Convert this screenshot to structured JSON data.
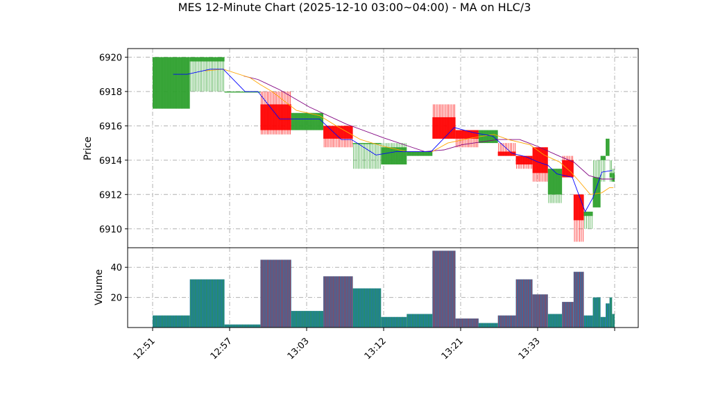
{
  "chart_data": {
    "type": "candlestick",
    "title": "MES 12-Minute Chart (2025-12-10 03:00~04:00) - MA on HLC/3",
    "ylabel_price": "Price",
    "ylabel_volume": "Volume",
    "price_ylim": [
      6908.9,
      6920.5
    ],
    "price_ticks": [
      6910,
      6912,
      6914,
      6916,
      6918,
      6920
    ],
    "volume_ylim": [
      0,
      53
    ],
    "volume_ticks": [
      20,
      40
    ],
    "x_tick_labels": [
      "12:51",
      "12:57",
      "13:03",
      "13:12",
      "13:21",
      "13:33"
    ],
    "grid": true,
    "colors": {
      "up": "#2ca02c",
      "down": "#ff0000",
      "ma_short": "#0000ff",
      "ma_mid": "#ffa500",
      "ma_long": "#800080",
      "volume_up": "#1f77b4",
      "volume_down": "#1f77b4"
    },
    "candles": [
      {
        "x0": 0.0,
        "x1": 2.9,
        "open": 6917.0,
        "high": 6920.0,
        "low": 6917.0,
        "close": 6920.0,
        "volume": 8
      },
      {
        "x0": 2.9,
        "x1": 5.6,
        "open": 6919.75,
        "high": 6920.0,
        "low": 6918.0,
        "close": 6920.0,
        "volume": 32
      },
      {
        "x0": 5.6,
        "x1": 8.4,
        "open": 6918.0,
        "high": 6918.0,
        "low": 6918.0,
        "close": 6918.0,
        "volume": 2
      },
      {
        "x0": 8.4,
        "x1": 10.8,
        "open": 6917.25,
        "high": 6918.0,
        "low": 6915.5,
        "close": 6915.75,
        "volume": 45
      },
      {
        "x0": 10.8,
        "x1": 13.3,
        "open": 6915.75,
        "high": 6916.75,
        "low": 6915.75,
        "close": 6916.75,
        "volume": 11
      },
      {
        "x0": 13.3,
        "x1": 15.6,
        "open": 6916.0,
        "high": 6916.0,
        "low": 6914.75,
        "close": 6915.25,
        "volume": 34
      },
      {
        "x0": 15.6,
        "x1": 17.8,
        "open": 6915.0,
        "high": 6915.0,
        "low": 6913.5,
        "close": 6915.0,
        "volume": 26
      },
      {
        "x0": 17.8,
        "x1": 19.8,
        "open": 6913.75,
        "high": 6915.0,
        "low": 6913.75,
        "close": 6914.75,
        "volume": 7
      },
      {
        "x0": 19.8,
        "x1": 21.8,
        "open": 6914.25,
        "high": 6914.5,
        "low": 6914.25,
        "close": 6914.5,
        "volume": 9
      },
      {
        "x0": 21.8,
        "x1": 23.6,
        "open": 6916.5,
        "high": 6917.25,
        "low": 6915.25,
        "close": 6915.25,
        "volume": 51
      },
      {
        "x0": 23.6,
        "x1": 25.4,
        "open": 6915.75,
        "high": 6915.75,
        "low": 6914.75,
        "close": 6915.25,
        "volume": 6
      },
      {
        "x0": 25.4,
        "x1": 26.9,
        "open": 6915.0,
        "high": 6915.75,
        "low": 6915.0,
        "close": 6915.75,
        "volume": 3
      },
      {
        "x0": 26.9,
        "x1": 28.3,
        "open": 6914.5,
        "high": 6915.0,
        "low": 6914.25,
        "close": 6914.25,
        "volume": 8
      },
      {
        "x0": 28.3,
        "x1": 29.6,
        "open": 6914.25,
        "high": 6914.25,
        "low": 6913.5,
        "close": 6913.75,
        "volume": 32
      },
      {
        "x0": 29.6,
        "x1": 30.8,
        "open": 6914.75,
        "high": 6914.75,
        "low": 6912.75,
        "close": 6913.25,
        "volume": 22
      },
      {
        "x0": 30.8,
        "x1": 31.9,
        "open": 6912.0,
        "high": 6913.5,
        "low": 6911.5,
        "close": 6913.5,
        "volume": 9
      },
      {
        "x0": 31.9,
        "x1": 32.8,
        "open": 6914.0,
        "high": 6914.25,
        "low": 6913.0,
        "close": 6913.0,
        "volume": 17
      },
      {
        "x0": 32.8,
        "x1": 33.6,
        "open": 6912.0,
        "high": 6912.0,
        "low": 6909.25,
        "close": 6910.5,
        "volume": 37
      },
      {
        "x0": 33.6,
        "x1": 34.3,
        "open": 6910.75,
        "high": 6911.0,
        "low": 6910.0,
        "close": 6911.0,
        "volume": 8
      },
      {
        "x0": 34.3,
        "x1": 34.9,
        "open": 6911.25,
        "high": 6914.0,
        "low": 6911.25,
        "close": 6913.0,
        "volume": 20
      },
      {
        "x0": 34.9,
        "x1": 35.3,
        "open": 6914.0,
        "high": 6914.25,
        "low": 6912.75,
        "close": 6914.25,
        "volume": 7
      },
      {
        "x0": 35.3,
        "x1": 35.6,
        "open": 6914.25,
        "high": 6915.25,
        "low": 6914.25,
        "close": 6915.25,
        "volume": 16
      },
      {
        "x0": 35.6,
        "x1": 35.8,
        "open": 6913.0,
        "high": 6914.0,
        "low": 6912.75,
        "close": 6913.25,
        "volume": 20
      },
      {
        "x0": 35.8,
        "x1": 36.0,
        "open": 6912.75,
        "high": 6913.5,
        "low": 6912.75,
        "close": 6913.25,
        "volume": 9
      }
    ],
    "ma_short": [
      [
        1.6,
        6919.0
      ],
      [
        2.7,
        6919.0
      ],
      [
        4.5,
        6919.3
      ],
      [
        5.5,
        6919.3
      ],
      [
        7.2,
        6918.0
      ],
      [
        8.2,
        6918.0
      ],
      [
        9.9,
        6916.4
      ],
      [
        11.8,
        6916.4
      ],
      [
        13.0,
        6916.4
      ],
      [
        14.7,
        6915.2
      ],
      [
        15.5,
        6915.2
      ],
      [
        17.4,
        6914.3
      ],
      [
        19.0,
        6914.5
      ],
      [
        21.7,
        6914.5
      ],
      [
        23.5,
        6915.9
      ],
      [
        25.0,
        6915.6
      ],
      [
        26.5,
        6915.4
      ],
      [
        28.0,
        6914.4
      ],
      [
        29.1,
        6914.2
      ],
      [
        30.0,
        6913.9
      ],
      [
        30.8,
        6913.7
      ],
      [
        31.5,
        6913.2
      ],
      [
        32.7,
        6913.0
      ],
      [
        33.7,
        6911.0
      ],
      [
        34.3,
        6911.8
      ],
      [
        35.0,
        6913.3
      ],
      [
        35.8,
        6913.4
      ]
    ],
    "ma_mid": [
      [
        4.1,
        6919.2
      ],
      [
        5.5,
        6919.3
      ],
      [
        7.6,
        6918.8
      ],
      [
        8.4,
        6918.4
      ],
      [
        9.3,
        6918.0
      ],
      [
        11.2,
        6916.9
      ],
      [
        13.0,
        6916.6
      ],
      [
        14.3,
        6916.0
      ],
      [
        16.2,
        6915.2
      ],
      [
        18.0,
        6914.8
      ],
      [
        19.8,
        6914.5
      ],
      [
        21.8,
        6914.5
      ],
      [
        23.0,
        6915.0
      ],
      [
        24.9,
        6915.3
      ],
      [
        26.6,
        6915.5
      ],
      [
        27.7,
        6915.2
      ],
      [
        29.4,
        6914.9
      ],
      [
        30.5,
        6914.3
      ],
      [
        31.7,
        6913.9
      ],
      [
        32.6,
        6913.3
      ],
      [
        33.2,
        6912.8
      ],
      [
        34.1,
        6912.0
      ],
      [
        35.0,
        6912.1
      ],
      [
        35.6,
        6912.4
      ],
      [
        35.9,
        6912.4
      ]
    ],
    "ma_long": [
      [
        7.1,
        6918.9
      ],
      [
        8.2,
        6918.7
      ],
      [
        9.9,
        6918.1
      ],
      [
        12.2,
        6917.1
      ],
      [
        15.1,
        6916.1
      ],
      [
        18.0,
        6915.3
      ],
      [
        20.0,
        6914.8
      ],
      [
        21.2,
        6914.5
      ],
      [
        22.7,
        6914.6
      ],
      [
        24.1,
        6914.9
      ],
      [
        26.9,
        6915.2
      ],
      [
        28.6,
        6915.2
      ],
      [
        30.0,
        6914.8
      ],
      [
        31.8,
        6914.2
      ],
      [
        32.8,
        6913.9
      ],
      [
        34.0,
        6913.1
      ],
      [
        35.0,
        6912.9
      ],
      [
        36.0,
        6912.9
      ]
    ]
  }
}
